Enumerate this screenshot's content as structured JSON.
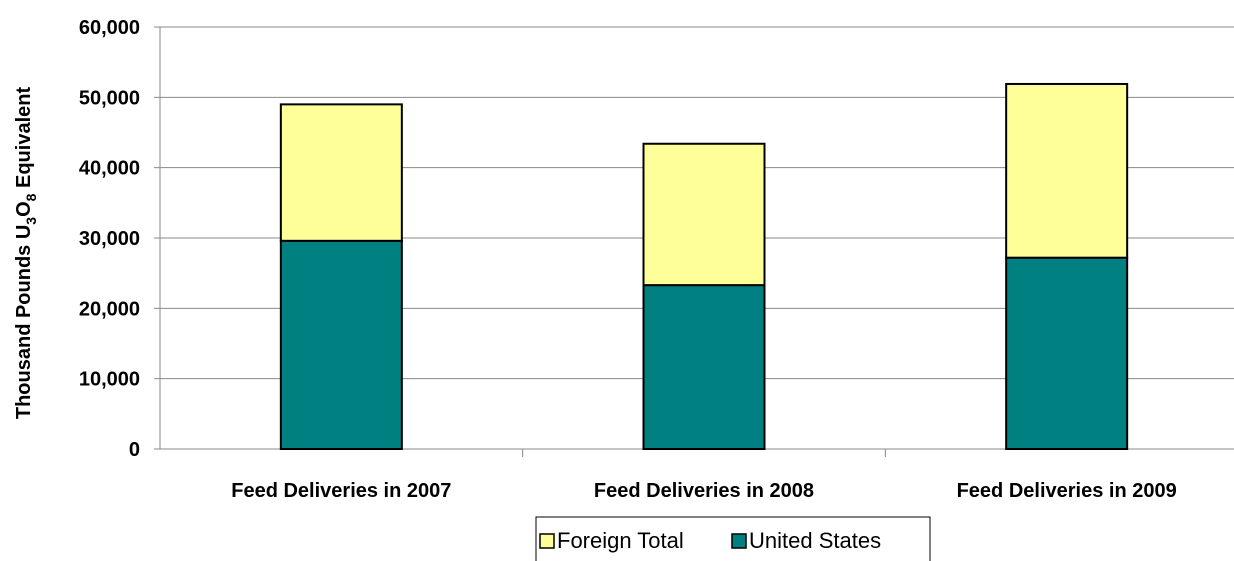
{
  "chart_data": {
    "type": "bar",
    "stacked": true,
    "categories": [
      "Feed Deliveries in 2007",
      "Feed Deliveries in 2008",
      "Feed Deliveries in 2009"
    ],
    "series": [
      {
        "name": "United States",
        "values": [
          29600,
          23300,
          27200
        ],
        "color": "#008080"
      },
      {
        "name": "Foreign Total",
        "values": [
          19400,
          20100,
          24700
        ],
        "color": "#FFFF99"
      }
    ],
    "ylabel": {
      "text": "Thousand Pounds U",
      "sub1": "3",
      "mid": "O",
      "sub2": "8",
      "tail": " Equivalent"
    },
    "ylim": [
      0,
      60000
    ],
    "yticks": [
      0,
      10000,
      20000,
      30000,
      40000,
      50000,
      60000
    ],
    "ytick_labels": [
      "0",
      "10,000",
      "20,000",
      "30,000",
      "40,000",
      "50,000",
      "60,000"
    ],
    "grid": true,
    "legend": {
      "position": "bottom",
      "entries": [
        "Foreign Total",
        "United States"
      ]
    }
  }
}
